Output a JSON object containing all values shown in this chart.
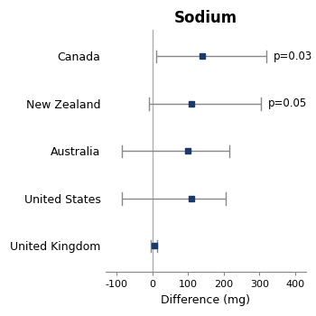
{
  "title": "Sodium",
  "xlabel": "Difference (mg)",
  "countries": [
    "Canada",
    "New Zealand",
    "Australia",
    "United States",
    "United Kingdom"
  ],
  "estimates": [
    140,
    110,
    100,
    110,
    5
  ],
  "ci_low": [
    10,
    -10,
    -85,
    -85,
    -5
  ],
  "ci_high": [
    320,
    305,
    215,
    205,
    15
  ],
  "pvalues": [
    "p=0.03",
    "p=0.05",
    null,
    null,
    null
  ],
  "point_color": "#1a3a6b",
  "line_color": "#888888",
  "ref_line_color": "#aaaaaa",
  "xlim": [
    -130,
    430
  ],
  "xticks": [
    -100,
    0,
    100,
    200,
    300,
    400
  ],
  "figsize": [
    3.5,
    3.5
  ],
  "dpi": 100,
  "title_fontsize": 12,
  "label_fontsize": 9,
  "tick_fontsize": 8,
  "pval_fontsize": 8.5
}
